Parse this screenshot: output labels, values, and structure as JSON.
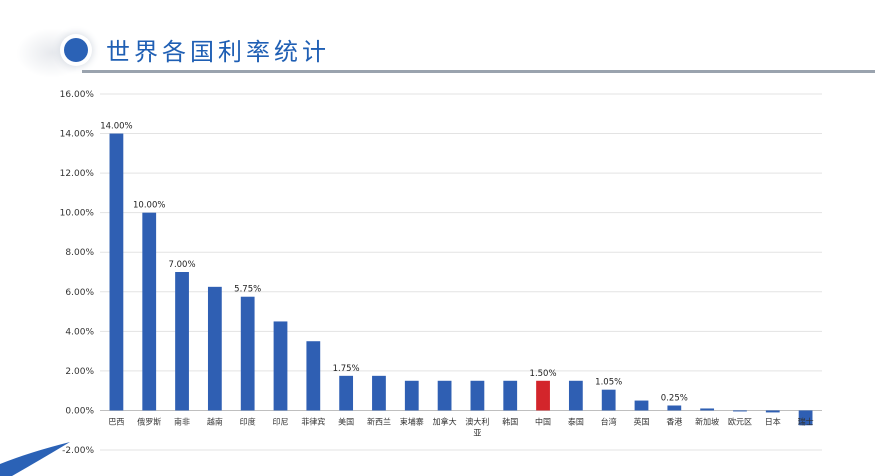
{
  "slide": {
    "title": "世界各国利率统计"
  },
  "colors": {
    "bar": "#2f5fb3",
    "highlight_bar": "#d3252b",
    "title": "#1f5fb4",
    "gridline": "#e3e3e3",
    "axis": "#bfbfbf"
  },
  "chart_data": {
    "type": "bar",
    "title": "",
    "xlabel": "",
    "ylabel": "",
    "ylim": [
      -0.02,
      0.16
    ],
    "y_ticks": [
      "-2.00%",
      "0.00%",
      "2.00%",
      "4.00%",
      "6.00%",
      "8.00%",
      "10.00%",
      "12.00%",
      "14.00%",
      "16.00%"
    ],
    "y_tick_values": [
      -0.02,
      0,
      0.02,
      0.04,
      0.06,
      0.08,
      0.1,
      0.12,
      0.14,
      0.16
    ],
    "grid": true,
    "legend": "none",
    "categories": [
      "巴西",
      "俄罗斯",
      "南非",
      "越南",
      "印度",
      "印尼",
      "菲律宾",
      "美国",
      "新西兰",
      "柬埔寨",
      "加拿大",
      "澳大利亚",
      "韩国",
      "中国",
      "泰国",
      "台湾",
      "英国",
      "香港",
      "新加坡",
      "欧元区",
      "日本",
      "瑞士"
    ],
    "values": [
      0.14,
      0.1,
      0.07,
      0.0625,
      0.0575,
      0.045,
      0.035,
      0.0175,
      0.0175,
      0.015,
      0.015,
      0.015,
      0.015,
      0.015,
      0.015,
      0.0105,
      0.005,
      0.0025,
      0.001,
      0.0,
      -0.001,
      -0.0075
    ],
    "highlight_index": 13,
    "data_labels": [
      {
        "index": 0,
        "text": "14.00%"
      },
      {
        "index": 1,
        "text": "10.00%"
      },
      {
        "index": 2,
        "text": "7.00%"
      },
      {
        "index": 4,
        "text": "5.75%"
      },
      {
        "index": 7,
        "text": "1.75%"
      },
      {
        "index": 13,
        "text": "1.50%"
      },
      {
        "index": 15,
        "text": "1.05%"
      },
      {
        "index": 17,
        "text": "0.25%"
      }
    ]
  }
}
